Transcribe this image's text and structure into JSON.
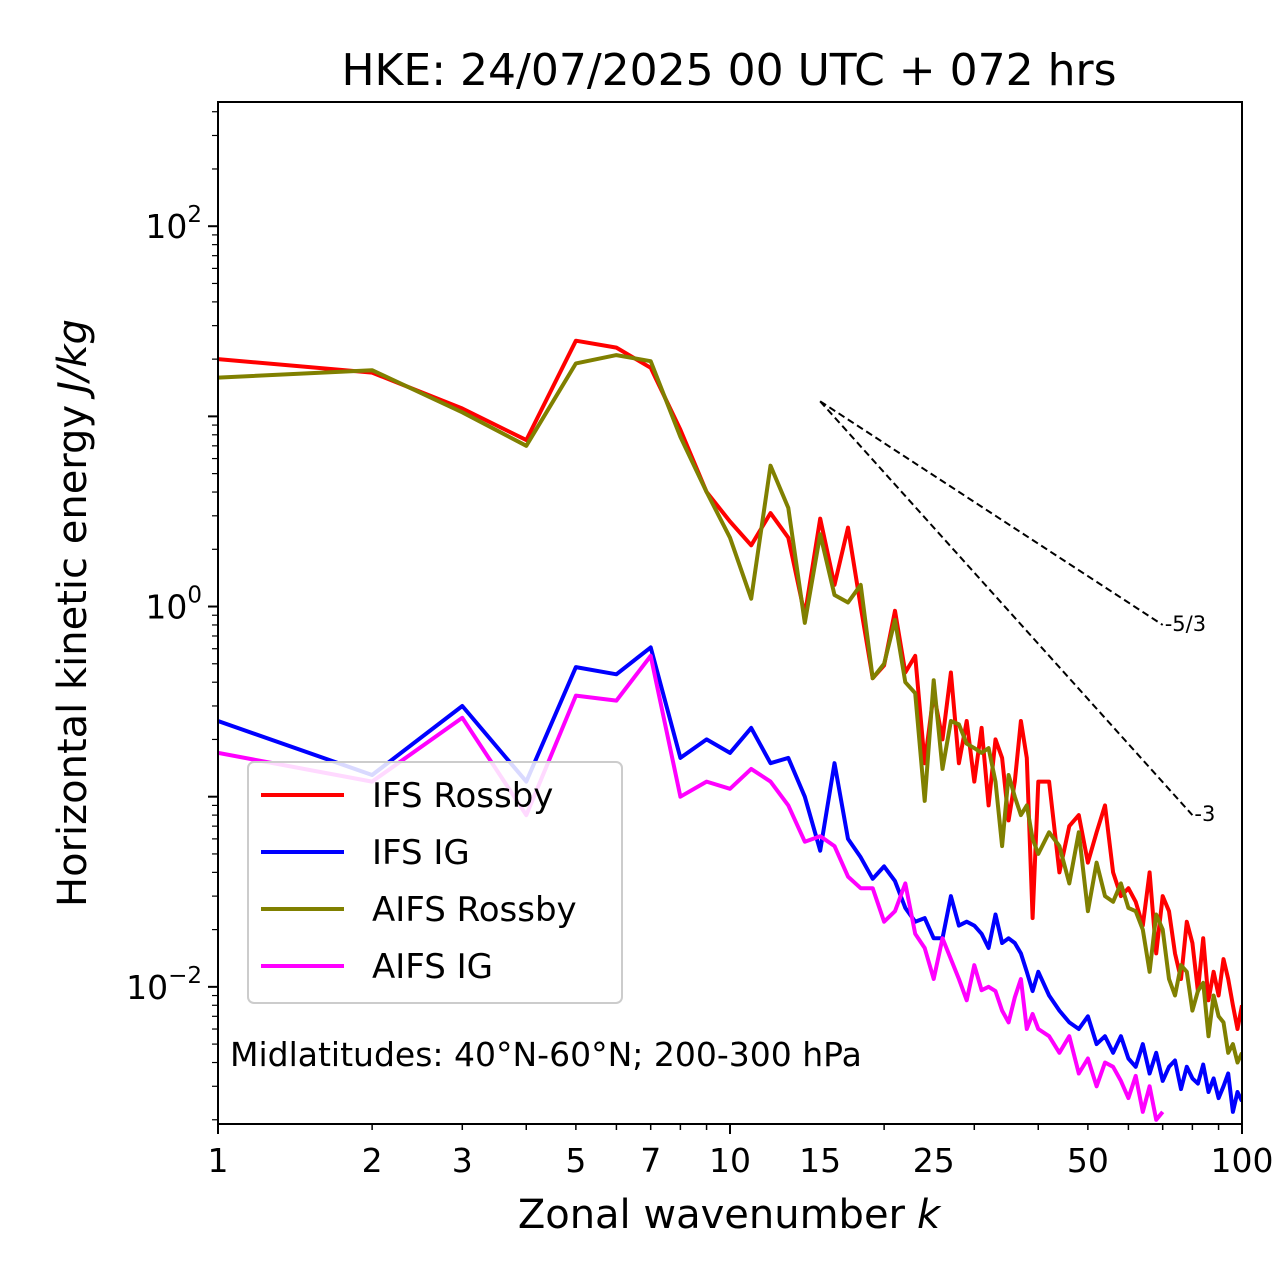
{
  "chart_data": {
    "type": "line",
    "title": "HKE: 24/07/2025 00 UTC + 072 hrs",
    "xlabel": "Zonal wavenumber",
    "xlabel_var": "k",
    "ylabel": "Horizontal kinetic energy",
    "ylabel_units": "J/kg",
    "xscale": "log",
    "yscale": "log",
    "xlim": [
      1,
      100
    ],
    "ylim": [
      0.0019,
      450
    ],
    "x_ticks": [
      1,
      2,
      3,
      5,
      7,
      10,
      15,
      25,
      50,
      100
    ],
    "x_tick_labels": [
      "1",
      "2",
      "3",
      "5",
      "7",
      "10",
      "15",
      "25",
      "50",
      "100"
    ],
    "y_ticks": [
      {
        "value": 100,
        "base": "10",
        "exp": "2"
      },
      {
        "value": 1,
        "base": "10",
        "exp": "0"
      },
      {
        "value": 0.01,
        "base": "10",
        "exp": "−2"
      }
    ],
    "annotation": "Midlatitudes: 40°N-60°N; 200-300 hPa",
    "legend_position": "lower-left",
    "series": [
      {
        "name": "IFS Rossby",
        "color": "#ff0000",
        "x": [
          1,
          2,
          3,
          4,
          5,
          6,
          7,
          8,
          9,
          10,
          11,
          12,
          13,
          14,
          15,
          16,
          17,
          18,
          19,
          20,
          21,
          22,
          23,
          24,
          25,
          26,
          27,
          28,
          29,
          30,
          31,
          32,
          33,
          34,
          35,
          36,
          37,
          38,
          39,
          40,
          42,
          44,
          46,
          48,
          50,
          52,
          54,
          56,
          58,
          60,
          62,
          64,
          66,
          68,
          70,
          72,
          74,
          76,
          78,
          80,
          82,
          84,
          86,
          88,
          90,
          92,
          94,
          96,
          98,
          100
        ],
        "values": [
          20,
          17,
          11,
          7.5,
          25,
          23,
          18,
          8.5,
          4,
          2.8,
          2.1,
          3.1,
          2.3,
          0.9,
          2.9,
          1.3,
          2.6,
          1.0,
          0.42,
          0.49,
          0.95,
          0.45,
          0.55,
          0.15,
          0.35,
          0.2,
          0.45,
          0.15,
          0.25,
          0.12,
          0.23,
          0.09,
          0.2,
          0.16,
          0.075,
          0.12,
          0.25,
          0.16,
          0.023,
          0.12,
          0.12,
          0.04,
          0.07,
          0.08,
          0.045,
          0.065,
          0.09,
          0.04,
          0.03,
          0.033,
          0.028,
          0.021,
          0.04,
          0.015,
          0.03,
          0.025,
          0.015,
          0.011,
          0.022,
          0.017,
          0.0095,
          0.018,
          0.0085,
          0.012,
          0.009,
          0.014,
          0.011,
          0.008,
          0.006,
          0.008
        ]
      },
      {
        "name": "IFS IG",
        "color": "#0000ff",
        "x": [
          1,
          2,
          3,
          4,
          5,
          6,
          7,
          8,
          9,
          10,
          11,
          12,
          13,
          14,
          15,
          16,
          17,
          18,
          19,
          20,
          21,
          22,
          23,
          24,
          25,
          26,
          27,
          28,
          29,
          30,
          31,
          32,
          33,
          34,
          35,
          36,
          37,
          38,
          39,
          40,
          42,
          44,
          46,
          48,
          50,
          52,
          54,
          56,
          58,
          60,
          62,
          64,
          66,
          68,
          70,
          72,
          74,
          76,
          78,
          80,
          82,
          84,
          86,
          88,
          90,
          92,
          94,
          96,
          98,
          100
        ],
        "values": [
          0.25,
          0.13,
          0.3,
          0.12,
          0.48,
          0.44,
          0.61,
          0.16,
          0.2,
          0.17,
          0.23,
          0.15,
          0.16,
          0.1,
          0.052,
          0.15,
          0.06,
          0.048,
          0.037,
          0.043,
          0.036,
          0.026,
          0.022,
          0.023,
          0.018,
          0.018,
          0.03,
          0.021,
          0.022,
          0.021,
          0.019,
          0.016,
          0.024,
          0.017,
          0.018,
          0.017,
          0.015,
          0.012,
          0.0095,
          0.012,
          0.009,
          0.0075,
          0.0065,
          0.006,
          0.007,
          0.005,
          0.0055,
          0.0045,
          0.0055,
          0.0042,
          0.0038,
          0.005,
          0.0035,
          0.0045,
          0.0032,
          0.0038,
          0.0041,
          0.0029,
          0.0038,
          0.0033,
          0.0031,
          0.0039,
          0.0028,
          0.0033,
          0.0026,
          0.003,
          0.0035,
          0.0022,
          0.0028,
          0.0025
        ]
      },
      {
        "name": "AIFS Rossby",
        "color": "#808000",
        "x": [
          1,
          2,
          3,
          4,
          5,
          6,
          7,
          8,
          9,
          10,
          11,
          12,
          13,
          14,
          15,
          16,
          17,
          18,
          19,
          20,
          21,
          22,
          23,
          24,
          25,
          26,
          27,
          28,
          29,
          30,
          31,
          32,
          33,
          34,
          35,
          36,
          37,
          38,
          39,
          40,
          42,
          44,
          46,
          48,
          50,
          52,
          54,
          56,
          58,
          60,
          62,
          64,
          66,
          68,
          70,
          72,
          74,
          76,
          78,
          80,
          82,
          84,
          86,
          88,
          90,
          92,
          94,
          96,
          98,
          100
        ],
        "values": [
          16,
          17.5,
          10.5,
          7,
          19,
          21,
          19.5,
          7.8,
          4,
          2.3,
          1.1,
          5.5,
          3.3,
          0.82,
          2.4,
          1.15,
          1.05,
          1.3,
          0.42,
          0.5,
          0.85,
          0.4,
          0.35,
          0.095,
          0.41,
          0.14,
          0.25,
          0.24,
          0.19,
          0.18,
          0.17,
          0.18,
          0.12,
          0.055,
          0.13,
          0.1,
          0.08,
          0.09,
          0.06,
          0.05,
          0.065,
          0.055,
          0.035,
          0.065,
          0.025,
          0.045,
          0.03,
          0.028,
          0.035,
          0.026,
          0.025,
          0.02,
          0.012,
          0.024,
          0.02,
          0.011,
          0.009,
          0.013,
          0.012,
          0.0075,
          0.0095,
          0.0105,
          0.0055,
          0.009,
          0.007,
          0.0065,
          0.0045,
          0.005,
          0.004,
          0.0045
        ]
      },
      {
        "name": "AIFS IG",
        "color": "#ff00ff",
        "x": [
          1,
          2,
          3,
          4,
          5,
          6,
          7,
          8,
          9,
          10,
          11,
          12,
          13,
          14,
          15,
          16,
          17,
          18,
          19,
          20,
          21,
          22,
          23,
          24,
          25,
          26,
          27,
          28,
          29,
          30,
          31,
          32,
          33,
          34,
          35,
          36,
          37,
          38,
          39,
          40,
          42,
          44,
          46,
          48,
          50,
          52,
          54,
          56,
          58,
          60,
          62,
          64,
          66,
          68,
          70
        ],
        "values": [
          0.17,
          0.12,
          0.26,
          0.08,
          0.34,
          0.32,
          0.55,
          0.1,
          0.12,
          0.11,
          0.14,
          0.12,
          0.09,
          0.058,
          0.062,
          0.055,
          0.038,
          0.033,
          0.033,
          0.022,
          0.025,
          0.035,
          0.019,
          0.016,
          0.011,
          0.018,
          0.014,
          0.011,
          0.0085,
          0.013,
          0.0096,
          0.01,
          0.0095,
          0.0075,
          0.0065,
          0.0088,
          0.011,
          0.006,
          0.0072,
          0.006,
          0.0055,
          0.0045,
          0.0055,
          0.0035,
          0.0042,
          0.003,
          0.004,
          0.0038,
          0.0032,
          0.0026,
          0.0034,
          0.0022,
          0.003,
          0.002,
          0.0022
        ]
      }
    ],
    "reference_lines": [
      {
        "label": "-5/3",
        "x": [
          15,
          70
        ],
        "y": [
          12,
          0.8
        ]
      },
      {
        "label": "-3",
        "x": [
          15,
          80
        ],
        "y": [
          12,
          0.08
        ]
      }
    ]
  }
}
